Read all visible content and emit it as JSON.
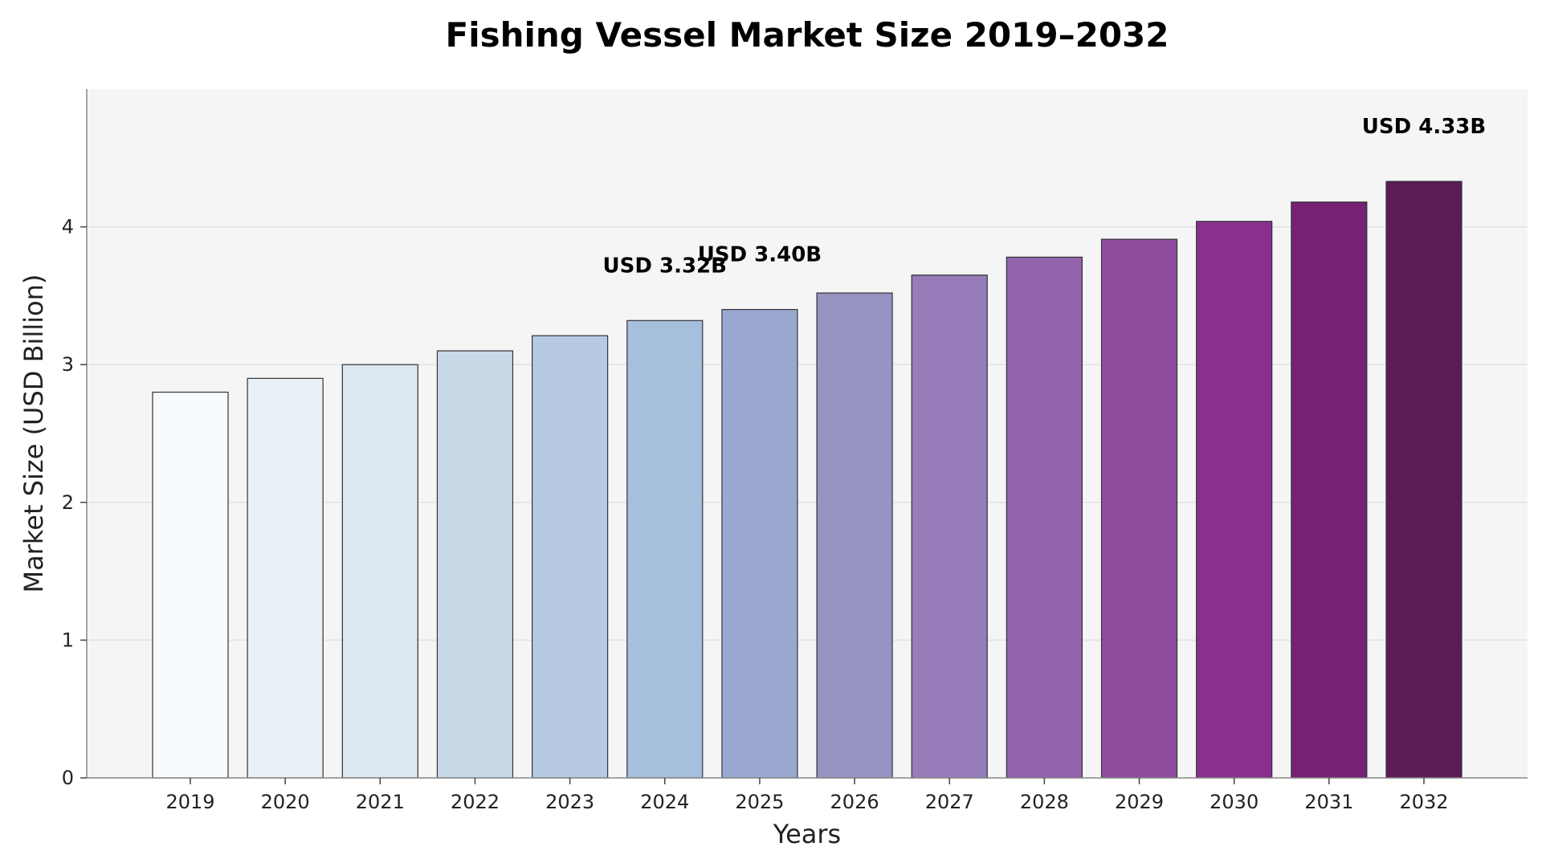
{
  "chart_data": {
    "type": "bar",
    "title": "Fishing Vessel Market Size 2019–2032",
    "xlabel": "Years",
    "ylabel": "Market Size (USD Billion)",
    "ylim": [
      0,
      5
    ],
    "yticks": [
      0,
      1,
      2,
      3,
      4
    ],
    "grid": true,
    "categories": [
      "2019",
      "2020",
      "2021",
      "2022",
      "2023",
      "2024",
      "2025",
      "2026",
      "2027",
      "2028",
      "2029",
      "2030",
      "2031",
      "2032"
    ],
    "values": [
      2.8,
      2.9,
      3.0,
      3.1,
      3.21,
      3.32,
      3.4,
      3.52,
      3.65,
      3.78,
      3.91,
      4.04,
      4.18,
      4.33
    ],
    "colors": [
      "#f7fbfd",
      "#e9f0f7",
      "#dce7f1",
      "#cad9e8",
      "#b6cbe3",
      "#a6bfdd",
      "#9aa8d1",
      "#9794c4",
      "#967cb8",
      "#9262ac",
      "#8e4c9f",
      "#8a2f8e",
      "#772173",
      "#5c1a57"
    ],
    "bar_edge_color": "#333333",
    "plot_background": "#f5f5f5",
    "grid_color": "#e2e2e2",
    "annotations": [
      {
        "category": "2024",
        "text": "USD 3.32B"
      },
      {
        "category": "2025",
        "text": "USD 3.40B"
      },
      {
        "category": "2032",
        "text": "USD 4.33B"
      }
    ]
  }
}
